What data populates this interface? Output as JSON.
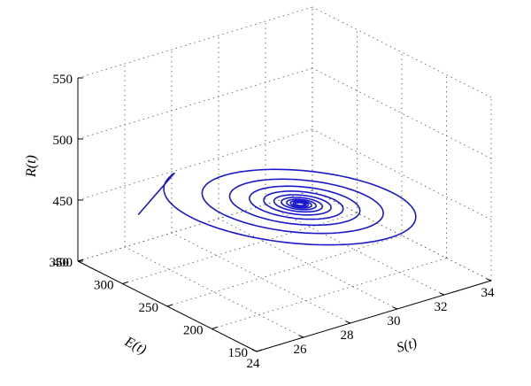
{
  "chart_data": {
    "type": "line3d",
    "title": "",
    "xlabel": "S(t)",
    "ylabel": "E(t)",
    "zlabel": "R(t)",
    "xlim": [
      24,
      34
    ],
    "ylim": [
      150,
      350
    ],
    "zlim": [
      400,
      550
    ],
    "xticks": [
      "24",
      "26",
      "28",
      "30",
      "32",
      "34"
    ],
    "yticks": [
      "150",
      "200",
      "250",
      "300",
      "350"
    ],
    "zticks": [
      "400",
      "450",
      "500",
      "550"
    ],
    "grid": true,
    "line_color": "#1a1acc",
    "spiral": {
      "center": {
        "S": 29.4,
        "E": 243,
        "R": 455
      },
      "start": {
        "S": 26.0,
        "E": 335,
        "R": 432
      }
    }
  }
}
